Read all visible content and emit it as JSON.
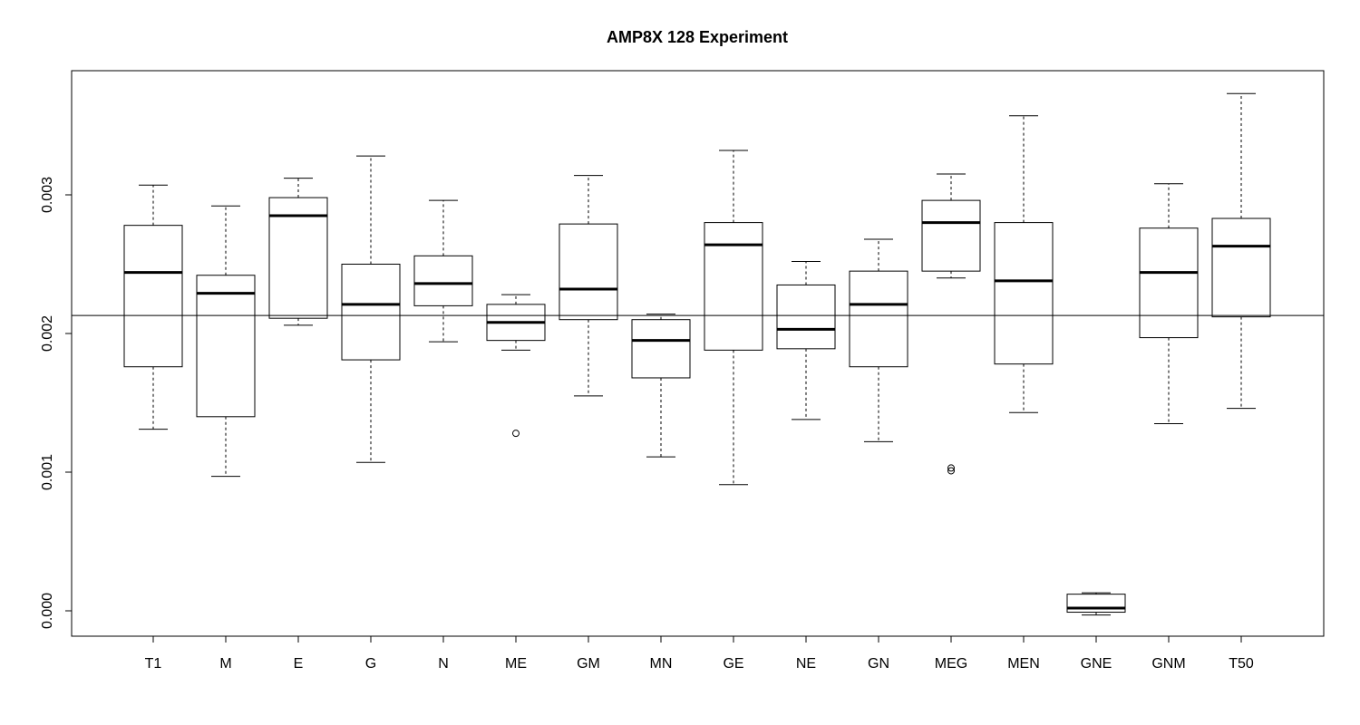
{
  "chart_data": {
    "type": "boxplot",
    "title": "AMP8X 128 Experiment",
    "xlabel": "",
    "ylabel": "",
    "ylim": [
      -0.00018,
      0.00388
    ],
    "yticks": [
      0.0,
      0.001,
      0.002,
      0.003
    ],
    "ytick_labels": [
      "0.000",
      "0.001",
      "0.002",
      "0.003"
    ],
    "reference_line": 0.00213,
    "grid": false,
    "categories": [
      "T1",
      "M",
      "E",
      "G",
      "N",
      "ME",
      "GM",
      "MN",
      "GE",
      "NE",
      "GN",
      "MEG",
      "MEN",
      "GNE",
      "GNM",
      "T50"
    ],
    "boxes": [
      {
        "label": "T1",
        "min": 0.00131,
        "q1": 0.00176,
        "median": 0.00244,
        "q3": 0.00278,
        "max": 0.00307,
        "outliers": []
      },
      {
        "label": "M",
        "min": 0.00097,
        "q1": 0.0014,
        "median": 0.00229,
        "q3": 0.00242,
        "max": 0.00292,
        "outliers": []
      },
      {
        "label": "E",
        "min": 0.00206,
        "q1": 0.00211,
        "median": 0.00285,
        "q3": 0.00298,
        "max": 0.00312,
        "outliers": []
      },
      {
        "label": "G",
        "min": 0.00107,
        "q1": 0.00181,
        "median": 0.00221,
        "q3": 0.0025,
        "max": 0.00328,
        "outliers": []
      },
      {
        "label": "N",
        "min": 0.00194,
        "q1": 0.0022,
        "median": 0.00236,
        "q3": 0.00256,
        "max": 0.00296,
        "outliers": []
      },
      {
        "label": "ME",
        "min": 0.00188,
        "q1": 0.00195,
        "median": 0.00208,
        "q3": 0.00221,
        "max": 0.00228,
        "outliers": [
          0.00128
        ]
      },
      {
        "label": "GM",
        "min": 0.00155,
        "q1": 0.0021,
        "median": 0.00232,
        "q3": 0.00279,
        "max": 0.00314,
        "outliers": []
      },
      {
        "label": "MN",
        "min": 0.00111,
        "q1": 0.00168,
        "median": 0.00195,
        "q3": 0.0021,
        "max": 0.00214,
        "outliers": []
      },
      {
        "label": "GE",
        "min": 0.00091,
        "q1": 0.00188,
        "median": 0.00264,
        "q3": 0.0028,
        "max": 0.00332,
        "outliers": []
      },
      {
        "label": "NE",
        "min": 0.00138,
        "q1": 0.00189,
        "median": 0.00203,
        "q3": 0.00235,
        "max": 0.00252,
        "outliers": []
      },
      {
        "label": "GN",
        "min": 0.00122,
        "q1": 0.00176,
        "median": 0.00221,
        "q3": 0.00245,
        "max": 0.00268,
        "outliers": []
      },
      {
        "label": "MEG",
        "min": 0.0024,
        "q1": 0.00245,
        "median": 0.0028,
        "q3": 0.00296,
        "max": 0.00315,
        "outliers": [
          0.00101,
          0.00103
        ]
      },
      {
        "label": "MEN",
        "min": 0.00143,
        "q1": 0.00178,
        "median": 0.00238,
        "q3": 0.0028,
        "max": 0.00357,
        "outliers": []
      },
      {
        "label": "GNE",
        "min": -3e-05,
        "q1": -1e-05,
        "median": 2e-05,
        "q3": 0.00012,
        "max": 0.00013,
        "outliers": []
      },
      {
        "label": "GNM",
        "min": 0.00135,
        "q1": 0.00197,
        "median": 0.00244,
        "q3": 0.00276,
        "max": 0.00308,
        "outliers": []
      },
      {
        "label": "T50",
        "min": 0.00146,
        "q1": 0.00212,
        "median": 0.00263,
        "q3": 0.00283,
        "max": 0.00373,
        "outliers": []
      }
    ]
  }
}
